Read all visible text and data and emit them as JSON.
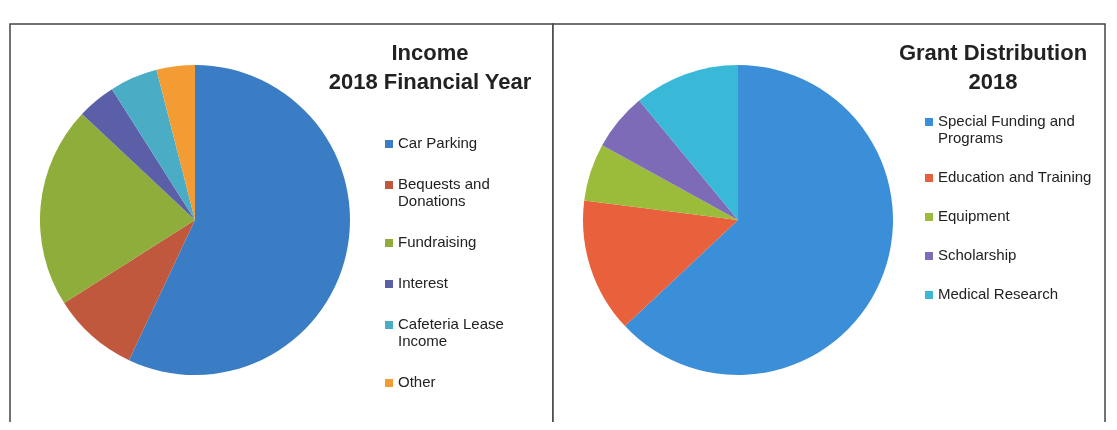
{
  "chart_data": [
    {
      "type": "pie",
      "title": "Income\n2018 Financial Year",
      "categories": [
        "Car Parking",
        "Bequests and Donations",
        "Fundraising",
        "Interest",
        "Cafeteria Lease Income",
        "Other"
      ],
      "values": [
        57,
        9,
        21,
        4,
        5,
        4
      ],
      "colors": [
        "#3a7dc4",
        "#c0583d",
        "#8fad3a",
        "#5b5fa8",
        "#4bacc6",
        "#f39c34"
      ],
      "legend": "right"
    },
    {
      "type": "pie",
      "title": "Grant Distribution\n2018",
      "categories": [
        "Special Funding and Programs",
        "Education and Training",
        "Equipment",
        "Scholarship",
        "Medical Research"
      ],
      "values": [
        63,
        14,
        6,
        6,
        11
      ],
      "colors": [
        "#3b8ed8",
        "#e8603c",
        "#9bbb3a",
        "#7d6bb8",
        "#3ab8d8"
      ],
      "legend": "right"
    }
  ]
}
